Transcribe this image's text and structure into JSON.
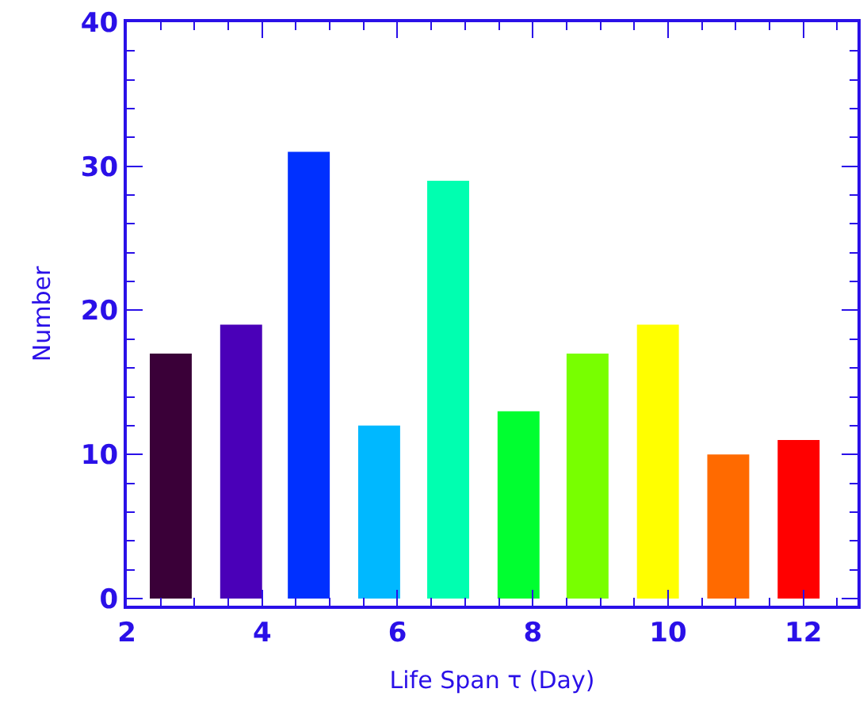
{
  "chart_data": {
    "type": "bar",
    "xlabel": "Life Span τ (Day)",
    "ylabel": "Number",
    "x": [
      2.65,
      3.69,
      4.69,
      5.73,
      6.75,
      7.79,
      8.81,
      9.85,
      10.89,
      11.93
    ],
    "values": [
      17,
      19,
      31,
      12,
      29,
      13,
      17,
      19,
      10,
      11
    ],
    "colors": [
      "#3a0038",
      "#4a00b8",
      "#0030ff",
      "#00b8ff",
      "#00ffb0",
      "#00ff30",
      "#78ff00",
      "#ffff00",
      "#ff6a00",
      "#ff0000"
    ],
    "xlim": [
      2,
      12.8
    ],
    "xticks": [
      2,
      4,
      6,
      8,
      10,
      12
    ],
    "ylim": [
      -0.5,
      40
    ],
    "yticks": [
      0,
      10,
      20,
      30,
      40
    ]
  }
}
